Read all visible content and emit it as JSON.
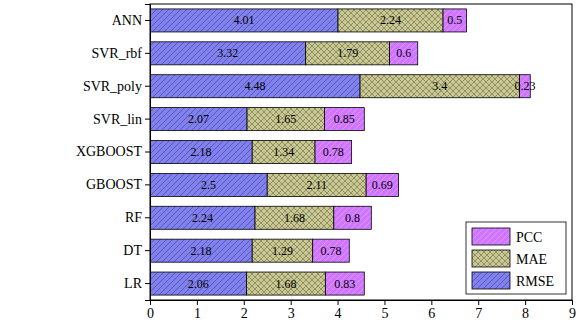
{
  "chart_data": {
    "type": "bar",
    "orientation": "horizontal",
    "stacked": true,
    "data_labels": true,
    "legend": "lower right",
    "categories": [
      "ANN",
      "SVR_rbf",
      "SVR_poly",
      "SVR_lin",
      "XGBOOST",
      "GBOOST",
      "RF",
      "DT",
      "LR"
    ],
    "series": [
      {
        "name": "RMSE",
        "color": "#8080f0",
        "values": [
          4.01,
          3.32,
          4.48,
          2.07,
          2.18,
          2.5,
          2.24,
          2.18,
          2.06
        ]
      },
      {
        "name": "MAE",
        "color": "#c8c890",
        "values": [
          2.24,
          1.79,
          3.4,
          1.65,
          1.34,
          2.11,
          1.68,
          1.29,
          1.68
        ]
      },
      {
        "name": "PCC",
        "color": "#cc77ff",
        "values": [
          0.5,
          0.6,
          0.23,
          0.85,
          0.78,
          0.69,
          0.8,
          0.78,
          0.83
        ]
      }
    ],
    "xlim": [
      0,
      9
    ],
    "xticks": [
      0,
      1,
      2,
      3,
      4,
      5,
      6,
      7,
      8,
      9
    ]
  }
}
